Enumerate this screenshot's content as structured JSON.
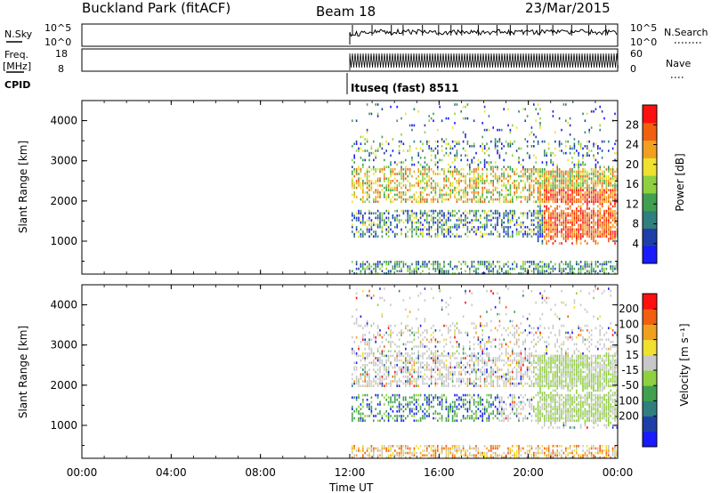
{
  "header": {
    "site": "Buckland Park (fitACF)",
    "beam": "Beam 18",
    "date": "23/Mar/2015"
  },
  "nsky_panel": {
    "left_label": "N.Sky",
    "right_label": "N.Search",
    "left_ticks": [
      "10^5",
      "10^0"
    ],
    "right_ticks": [
      "10^5",
      "10^0"
    ]
  },
  "freq_panel": {
    "left_label_line1": "Freq.",
    "left_label_line2": "[MHz]",
    "right_label": "Nave",
    "left_ticks": [
      "18",
      "8"
    ],
    "right_ticks": [
      "60",
      "0"
    ]
  },
  "cpid": {
    "label": "CPID",
    "program": "Ituseq (fast) 8511"
  },
  "colors": {
    "power_scale": [
      "#1a1aff",
      "#1f3fa8",
      "#2f7f7f",
      "#3fa04f",
      "#8fd040",
      "#f0e030",
      "#f0a020",
      "#f06010",
      "#ff1010"
    ],
    "velocity_scale": [
      "#1a1aff",
      "#1f3fa8",
      "#2f7f7f",
      "#3fa04f",
      "#8fd040",
      "#c8c8c8",
      "#f0e030",
      "#f0a020",
      "#f06010",
      "#ff1010"
    ]
  },
  "chart_data": [
    {
      "type": "heatmap",
      "name": "power",
      "ylabel": "Slant Range [km]",
      "ylim": [
        180,
        4500
      ],
      "yticks": [
        "1000",
        "2000",
        "3000",
        "4000"
      ],
      "colorbar_label": "Power [dB]",
      "colorbar_ticks": [
        "4",
        "8",
        "12",
        "16",
        "20",
        "24",
        "28"
      ],
      "colorbar_range": [
        0,
        32
      ],
      "data_start_ut": "12:00"
    },
    {
      "type": "heatmap",
      "name": "velocity",
      "ylabel": "Slant Range [km]",
      "ylim": [
        180,
        4500
      ],
      "yticks": [
        "1000",
        "2000",
        "3000",
        "4000"
      ],
      "colorbar_label": "Velocity [m s⁻¹]",
      "colorbar_ticks": [
        "200",
        "100",
        "50",
        "15",
        "-15",
        "-50",
        "-100",
        "-200"
      ],
      "data_start_ut": "12:00"
    }
  ],
  "x_axis": {
    "label": "Time UT",
    "ticks": [
      "00:00",
      "04:00",
      "08:00",
      "12:00",
      "16:00",
      "20:00",
      "00:00"
    ]
  }
}
